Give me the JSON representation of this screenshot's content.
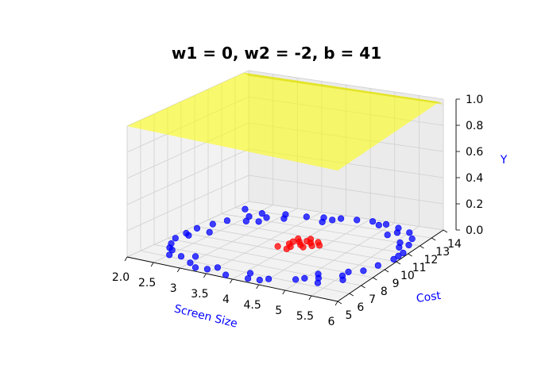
{
  "chart_data": {
    "type": "scatter3d",
    "title": "w1 = 0, w2 = -2, b = 41",
    "xlabel": "Screen Size",
    "ylabel": "Cost",
    "zlabel": "Y",
    "xlim": [
      2.0,
      6.0
    ],
    "ylim": [
      5,
      14
    ],
    "zlim": [
      0.0,
      1.0
    ],
    "x_ticks": [
      "2.0",
      "2.5",
      "3",
      "3.5",
      "4",
      "4.5",
      "5",
      "5.5",
      "6"
    ],
    "y_ticks": [
      "5",
      "6",
      "7",
      "8",
      "9",
      "10",
      "11",
      "12",
      "13",
      "14"
    ],
    "z_ticks": [
      "0.0",
      "0.2",
      "0.4",
      "0.6",
      "0.8",
      "1.0"
    ],
    "grid": true,
    "surface": {
      "name": "sigmoid surface",
      "color": "#ffff00",
      "opacity": 0.55
    },
    "series": [
      {
        "label_value": 0,
        "color": "#0000ff",
        "points": [
          [
            2.2,
            13.0
          ],
          [
            2.5,
            12.2
          ],
          [
            2.8,
            11.8
          ],
          [
            3.1,
            12.6
          ],
          [
            3.4,
            13.2
          ],
          [
            3.7,
            13.4
          ],
          [
            4.0,
            13.6
          ],
          [
            4.3,
            13.7
          ],
          [
            4.6,
            13.8
          ],
          [
            4.9,
            13.7
          ],
          [
            5.2,
            13.5
          ],
          [
            5.5,
            13.2
          ],
          [
            5.7,
            12.6
          ],
          [
            5.8,
            11.9
          ],
          [
            5.9,
            11.0
          ],
          [
            5.9,
            10.2
          ],
          [
            5.8,
            9.3
          ],
          [
            5.7,
            8.5
          ],
          [
            5.5,
            7.6
          ],
          [
            5.2,
            6.9
          ],
          [
            4.9,
            6.3
          ],
          [
            4.5,
            5.8
          ],
          [
            4.2,
            5.4
          ],
          [
            3.8,
            5.3
          ],
          [
            3.4,
            5.5
          ],
          [
            3.0,
            5.8
          ],
          [
            2.7,
            6.3
          ],
          [
            2.4,
            6.8
          ],
          [
            2.2,
            7.5
          ],
          [
            2.1,
            8.2
          ],
          [
            2.1,
            9.0
          ],
          [
            2.1,
            9.8
          ],
          [
            2.2,
            10.6
          ],
          [
            2.3,
            11.3
          ],
          [
            2.6,
            12.8
          ],
          [
            3.9,
            13.3
          ],
          [
            5.6,
            12.0
          ],
          [
            5.6,
            7.2
          ],
          [
            2.3,
            7.0
          ],
          [
            3.2,
            5.4
          ],
          [
            4.4,
            5.5
          ],
          [
            5.0,
            6.6
          ],
          [
            5.3,
            6.4
          ],
          [
            2.5,
            6.2
          ],
          [
            2.2,
            8.8
          ],
          [
            2.6,
            11.6
          ],
          [
            3.0,
            13.1
          ],
          [
            4.8,
            13.5
          ],
          [
            5.3,
            13.0
          ],
          [
            5.9,
            10.6
          ],
          [
            5.5,
            8.1
          ],
          [
            5.1,
            7.3
          ],
          [
            3.5,
            5.9
          ],
          [
            4.1,
            6.0
          ],
          [
            2.9,
            6.6
          ],
          [
            2.4,
            9.6
          ],
          [
            5.7,
            11.5
          ],
          [
            5.2,
            12.6
          ],
          [
            3.8,
            12.9
          ],
          [
            2.8,
            12.4
          ]
        ]
      },
      {
        "label_value": 1,
        "color": "#ff0000",
        "points": [
          [
            3.8,
            9.4
          ],
          [
            3.9,
            9.9
          ],
          [
            4.0,
            9.6
          ],
          [
            4.1,
            10.0
          ],
          [
            4.0,
            10.3
          ],
          [
            3.9,
            10.6
          ],
          [
            4.1,
            10.8
          ],
          [
            4.2,
            10.4
          ],
          [
            4.3,
            10.1
          ],
          [
            4.2,
            9.8
          ],
          [
            4.3,
            10.6
          ],
          [
            4.0,
            9.3
          ],
          [
            3.9,
            10.2
          ],
          [
            4.4,
            10.3
          ],
          [
            4.1,
            10.5
          ]
        ]
      }
    ]
  }
}
